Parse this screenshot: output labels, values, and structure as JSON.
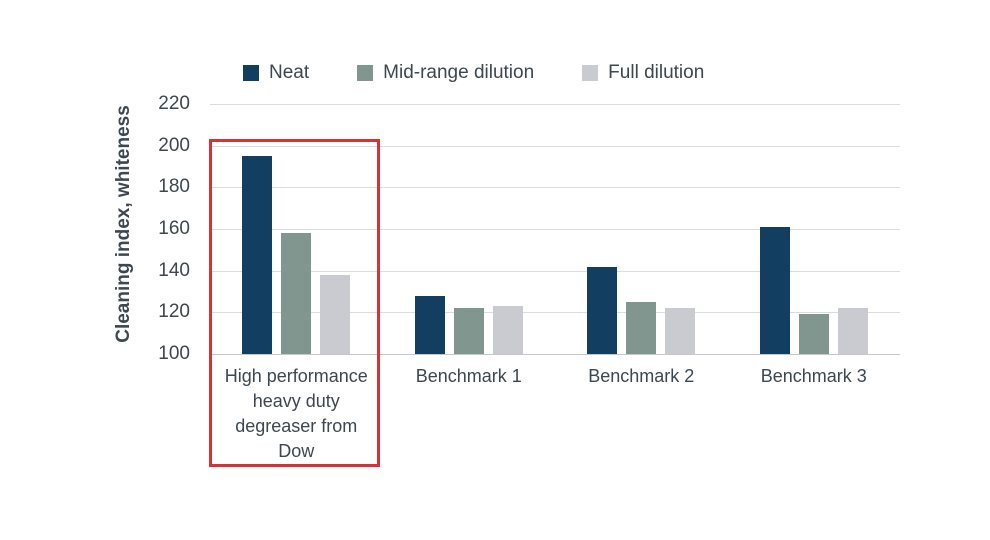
{
  "colors": {
    "neat": "#123f61",
    "mid_range": "#80968e",
    "full": "#c9cbd1",
    "highlight_box": "#d93236",
    "text": "#3d4750",
    "gridline": "#dadcde",
    "axis_baseline": "#c5c8ca"
  },
  "chart_data": {
    "type": "bar",
    "title": "",
    "xlabel": "",
    "ylabel": "Cleaning index, whiteness",
    "ylim": [
      100,
      220
    ],
    "yticks": [
      220,
      200,
      180,
      160,
      140,
      120,
      100
    ],
    "grid": true,
    "legend_position": "top",
    "categories": [
      "High performance heavy duty degreaser from Dow",
      "Benchmark 1",
      "Benchmark 2",
      "Benchmark 3"
    ],
    "series": [
      {
        "name": "Neat",
        "color": "#123f61",
        "values": [
          195,
          128,
          142,
          161
        ]
      },
      {
        "name": "Mid-range dilution",
        "color": "#80968e",
        "values": [
          158,
          122,
          125,
          119
        ]
      },
      {
        "name": "Full dilution",
        "color": "#c9cbd1",
        "values": [
          138,
          123,
          122,
          122
        ]
      }
    ],
    "highlighted_category": "High performance heavy duty degreaser from Dow"
  }
}
